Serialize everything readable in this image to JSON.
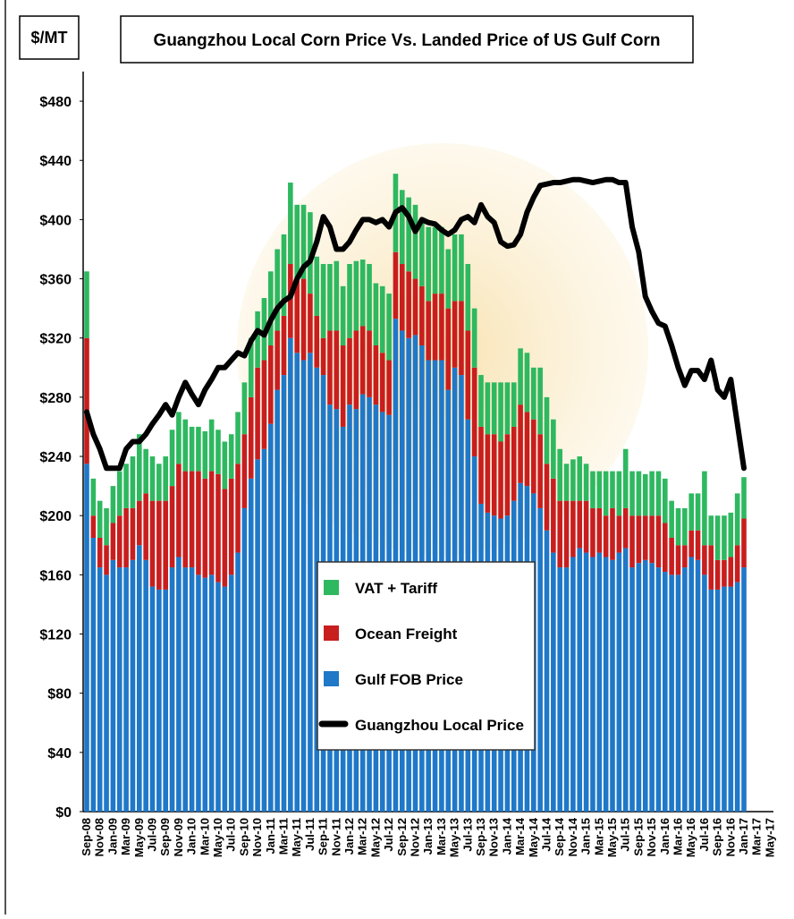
{
  "chart_data": {
    "type": "stacked-bar-line",
    "title": "Guangzhou Local Corn Price Vs. Landed Price of US Gulf Corn",
    "y_label": "$/MT",
    "ylim": [
      0,
      500
    ],
    "yticks": [
      {
        "value": 0,
        "label": "$0"
      },
      {
        "value": 40,
        "label": "$40"
      },
      {
        "value": 80,
        "label": "$80"
      },
      {
        "value": 120,
        "label": "$120"
      },
      {
        "value": 160,
        "label": "$160"
      },
      {
        "value": 200,
        "label": "$200"
      },
      {
        "value": 240,
        "label": "$240"
      },
      {
        "value": 280,
        "label": "$280"
      },
      {
        "value": 320,
        "label": "$320"
      },
      {
        "value": 360,
        "label": "$360"
      },
      {
        "value": 400,
        "label": "$400"
      },
      {
        "value": 440,
        "label": "$440"
      },
      {
        "value": 480,
        "label": "$480"
      }
    ],
    "categories": [
      "Sep-08",
      null,
      "Nov-08",
      null,
      "Jan-09",
      null,
      "Mar-09",
      null,
      "May-09",
      null,
      "Jul-09",
      null,
      "Sep-09",
      null,
      "Nov-09",
      null,
      "Jan-10",
      null,
      "Mar-10",
      null,
      "May-10",
      null,
      "Jul-10",
      null,
      "Sep-10",
      null,
      "Nov-10",
      null,
      "Jan-11",
      null,
      "Mar-11",
      null,
      "May-11",
      null,
      "Jul-11",
      null,
      "Sep-11",
      null,
      "Nov-11",
      null,
      "Jan-12",
      null,
      "Mar-12",
      null,
      "May-12",
      null,
      "Jul-12",
      null,
      "Sep-12",
      null,
      "Nov-12",
      null,
      "Jan-13",
      null,
      "Mar-13",
      null,
      "May-13",
      null,
      "Jul-13",
      null,
      "Sep-13",
      null,
      "Nov-13",
      null,
      "Jan-14",
      null,
      "Mar-14",
      null,
      "May-14",
      null,
      "Jul-14",
      null,
      "Sep-14",
      null,
      "Nov-14",
      null,
      "Jan-15",
      null,
      "Mar-15",
      null,
      "May-15",
      null,
      "Jul-15",
      null,
      "Sep-15",
      null,
      "Nov-15",
      null,
      "Jan-16",
      null,
      "Mar-16",
      null,
      "May-16",
      null,
      "Jul-16",
      null,
      "Sep-16",
      null,
      "Nov-16",
      null,
      "Jan-17",
      null,
      "Mar-17",
      null,
      "May-17"
    ],
    "series": [
      {
        "name": "Gulf FOB Price",
        "kind": "bar",
        "color": "#1f78c8",
        "values": [
          235,
          185,
          165,
          160,
          170,
          165,
          165,
          170,
          180,
          170,
          152,
          150,
          150,
          165,
          172,
          165,
          165,
          160,
          158,
          160,
          155,
          152,
          160,
          175,
          205,
          225,
          238,
          245,
          262,
          285,
          295,
          320,
          310,
          305,
          310,
          300,
          295,
          275,
          272,
          260,
          275,
          272,
          282,
          280,
          275,
          270,
          268,
          333,
          325,
          320,
          322,
          315,
          305,
          305,
          305,
          285,
          300,
          295,
          265,
          240,
          208,
          202,
          200,
          198,
          200,
          210,
          222,
          220,
          215,
          205,
          190,
          175,
          165,
          165,
          172,
          178,
          175,
          172,
          175,
          172,
          170,
          175,
          178,
          165,
          168,
          170,
          168,
          165,
          162,
          160,
          160,
          165,
          172,
          170,
          160,
          150,
          150,
          152,
          152,
          155,
          165,
          null,
          null,
          null,
          null
        ]
      },
      {
        "name": "Ocean Freight",
        "kind": "bar",
        "color": "#c81e1e",
        "values": [
          85,
          15,
          20,
          20,
          25,
          35,
          40,
          35,
          30,
          45,
          58,
          60,
          60,
          55,
          63,
          65,
          65,
          70,
          67,
          70,
          73,
          66,
          65,
          60,
          50,
          55,
          62,
          60,
          53,
          40,
          40,
          50,
          50,
          55,
          40,
          35,
          25,
          50,
          53,
          55,
          45,
          53,
          46,
          45,
          40,
          40,
          37,
          45,
          45,
          45,
          38,
          40,
          40,
          45,
          45,
          55,
          45,
          50,
          60,
          60,
          52,
          53,
          55,
          52,
          55,
          50,
          53,
          50,
          50,
          50,
          45,
          50,
          45,
          45,
          38,
          32,
          35,
          33,
          30,
          28,
          35,
          25,
          27,
          35,
          32,
          30,
          32,
          35,
          33,
          25,
          20,
          15,
          18,
          20,
          20,
          30,
          20,
          18,
          20,
          25,
          33,
          null,
          null,
          null,
          null
        ]
      },
      {
        "name": "VAT + Tariff",
        "kind": "bar",
        "color": "#2eb860",
        "values": [
          45,
          25,
          25,
          25,
          25,
          30,
          30,
          35,
          45,
          30,
          30,
          25,
          30,
          38,
          35,
          35,
          30,
          30,
          32,
          35,
          30,
          32,
          30,
          35,
          35,
          40,
          38,
          42,
          50,
          55,
          55,
          55,
          50,
          50,
          55,
          40,
          50,
          45,
          47,
          40,
          50,
          47,
          45,
          45,
          42,
          45,
          45,
          53,
          50,
          50,
          50,
          45,
          50,
          45,
          45,
          40,
          45,
          45,
          45,
          40,
          35,
          35,
          35,
          40,
          35,
          30,
          38,
          40,
          35,
          45,
          45,
          40,
          35,
          25,
          28,
          30,
          25,
          25,
          25,
          30,
          25,
          30,
          40,
          30,
          30,
          28,
          30,
          30,
          30,
          25,
          25,
          25,
          25,
          25,
          50,
          20,
          30,
          30,
          30,
          35,
          28,
          null,
          null,
          null,
          null
        ]
      },
      {
        "name": "Guangzhou Local Price",
        "kind": "line",
        "color": "#000000",
        "values": [
          270,
          255,
          245,
          232,
          232,
          232,
          245,
          250,
          250,
          255,
          262,
          268,
          275,
          268,
          280,
          290,
          282,
          275,
          285,
          292,
          300,
          300,
          305,
          310,
          308,
          318,
          325,
          322,
          332,
          340,
          345,
          348,
          360,
          368,
          372,
          385,
          402,
          395,
          380,
          380,
          385,
          393,
          400,
          400,
          398,
          400,
          395,
          405,
          408,
          402,
          392,
          400,
          398,
          397,
          393,
          390,
          393,
          400,
          402,
          398,
          410,
          402,
          398,
          385,
          382,
          383,
          390,
          405,
          415,
          423,
          424,
          425,
          425,
          426,
          427,
          427,
          426,
          425,
          426,
          427,
          427,
          425,
          425,
          395,
          378,
          348,
          338,
          330,
          328,
          315,
          300,
          288,
          298,
          298,
          292,
          305,
          285,
          280,
          292,
          262,
          232,
          null,
          null,
          null,
          null
        ]
      }
    ]
  }
}
